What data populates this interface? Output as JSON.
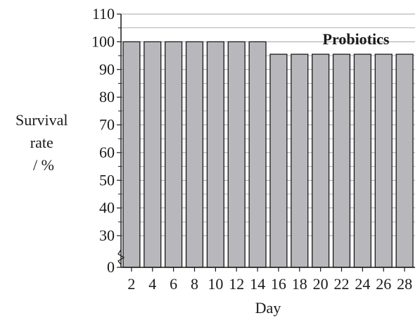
{
  "chart_data": {
    "type": "bar",
    "title": "Probiotics",
    "xlabel": "Day",
    "ylabel_lines": [
      "Survival",
      "rate",
      "/ %"
    ],
    "categories": [
      "2",
      "4",
      "6",
      "8",
      "10",
      "12",
      "14",
      "16",
      "18",
      "20",
      "22",
      "24",
      "26",
      "28"
    ],
    "values": [
      100,
      100,
      100,
      100,
      100,
      100,
      100,
      95.5,
      95.5,
      95.5,
      95.5,
      95.5,
      95.5,
      95.5
    ],
    "yticks": [
      0,
      30,
      40,
      50,
      60,
      70,
      80,
      90,
      100,
      110
    ],
    "ylim": [
      0,
      110
    ],
    "y_axis_break": true,
    "grid": true,
    "colors": {
      "bar": "#b8b8bc",
      "edge": "#1a1a1a",
      "grid": "#888888"
    }
  }
}
